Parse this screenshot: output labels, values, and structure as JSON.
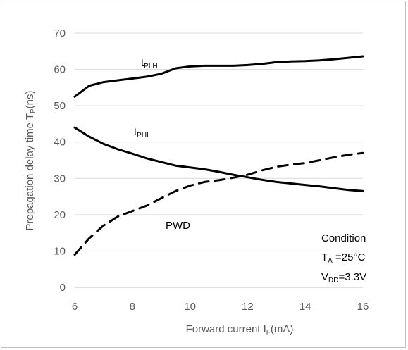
{
  "chart_data": {
    "type": "line",
    "title": "",
    "xlabel": "Forward current I",
    "xlabel_sub": "F",
    "xlabel_tail": "(mA)",
    "ylabel": "Propagation delay time T",
    "ylabel_sub": "P",
    "ylabel_tail": "(ns)",
    "xlim": [
      6,
      16
    ],
    "ylim": [
      0,
      70
    ],
    "xticks": [
      6,
      8,
      10,
      12,
      14,
      16
    ],
    "yticks": [
      0,
      10,
      20,
      30,
      40,
      50,
      60,
      70
    ],
    "grid": "horizontal",
    "series": [
      {
        "name": "t",
        "name_sub": "PLH",
        "style": "solid",
        "color": "#000000",
        "x": [
          6,
          6.5,
          7,
          7.5,
          8,
          8.5,
          9,
          9.5,
          10,
          10.5,
          11,
          11.5,
          12,
          12.5,
          13,
          13.5,
          14,
          14.5,
          15,
          15.5,
          16
        ],
        "y": [
          52.5,
          55.5,
          56.5,
          57,
          57.5,
          58,
          58.8,
          60.3,
          60.8,
          61,
          61,
          61,
          61.2,
          61.5,
          62,
          62.2,
          62.3,
          62.5,
          62.8,
          63.2,
          63.6
        ]
      },
      {
        "name": "t",
        "name_sub": "PHL",
        "style": "solid",
        "color": "#000000",
        "x": [
          6,
          6.5,
          7,
          7.5,
          8,
          8.5,
          9,
          9.5,
          10,
          10.5,
          11,
          11.5,
          12,
          12.5,
          13,
          13.5,
          14,
          14.5,
          15,
          15.5,
          16
        ],
        "y": [
          44,
          41.5,
          39.5,
          38,
          36.8,
          35.5,
          34.5,
          33.5,
          33,
          32.5,
          31.8,
          31,
          30.3,
          29.6,
          29,
          28.6,
          28.2,
          27.8,
          27.3,
          26.8,
          26.5
        ]
      },
      {
        "name": "PWD",
        "name_sub": "",
        "style": "dashed",
        "color": "#000000",
        "x": [
          6,
          6.5,
          7,
          7.5,
          8,
          8.5,
          9,
          9.5,
          10,
          10.5,
          11,
          11.5,
          12,
          12.5,
          13,
          13.5,
          14,
          14.5,
          15,
          15.5,
          16
        ],
        "y": [
          9,
          13.5,
          17,
          19.5,
          21,
          22.5,
          24.5,
          26.5,
          28,
          29,
          29.5,
          30.2,
          31,
          32.2,
          33.2,
          33.8,
          34.2,
          35,
          35.8,
          36.5,
          37
        ]
      }
    ],
    "annotations": {
      "condition_title": "Condition",
      "ta_main": "T",
      "ta_sub": "A",
      "ta_value": " =25°C",
      "vdd_main": "V",
      "vdd_sub": "DD",
      "vdd_value": "=3.3V"
    }
  }
}
